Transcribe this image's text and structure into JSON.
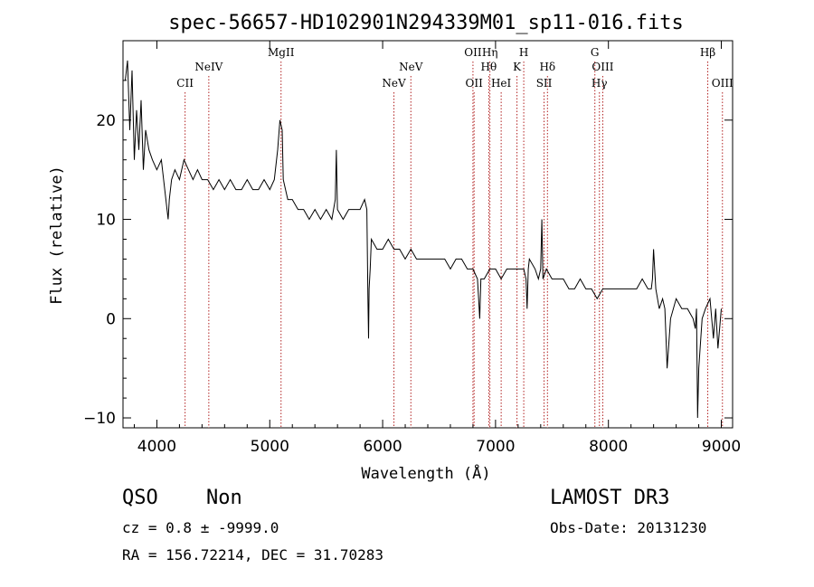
{
  "chart_data": {
    "type": "line",
    "title": "spec-56657-HD102901N294339M01_sp11-016.fits",
    "xlabel": "Wavelength (Å)",
    "ylabel": "Flux (relative)",
    "xlim": [
      3700,
      9100
    ],
    "ylim": [
      -11,
      28
    ],
    "xticks": [
      4000,
      5000,
      6000,
      7000,
      8000,
      9000
    ],
    "yticks": [
      -10,
      0,
      10,
      20
    ],
    "grid": false,
    "line_color": "#000000",
    "marker_color": "#b22222",
    "series": [
      {
        "x": [
          3720,
          3740,
          3760,
          3780,
          3800,
          3820,
          3840,
          3860,
          3880,
          3900,
          3930,
          3960,
          4000,
          4040,
          4080,
          4100,
          4110,
          4130,
          4160,
          4200,
          4240,
          4280,
          4320,
          4360,
          4400,
          4450,
          4500,
          4550,
          4600,
          4650,
          4700,
          4750,
          4800,
          4850,
          4900,
          4950,
          5000,
          5040,
          5070,
          5090,
          5110,
          5120,
          5140,
          5160,
          5200,
          5250,
          5300,
          5350,
          5400,
          5450,
          5500,
          5550,
          5580,
          5590,
          5600,
          5650,
          5700,
          5750,
          5800,
          5840,
          5860,
          5870,
          5875,
          5880,
          5890,
          5900,
          5950,
          6000,
          6050,
          6100,
          6150,
          6200,
          6250,
          6300,
          6350,
          6400,
          6450,
          6500,
          6550,
          6600,
          6650,
          6700,
          6750,
          6800,
          6840,
          6850,
          6860,
          6870,
          6900,
          6950,
          7000,
          7050,
          7100,
          7150,
          7200,
          7250,
          7270,
          7280,
          7290,
          7300,
          7350,
          7380,
          7400,
          7410,
          7420,
          7450,
          7500,
          7550,
          7600,
          7650,
          7700,
          7750,
          7800,
          7850,
          7900,
          7950,
          8000,
          8050,
          8100,
          8150,
          8200,
          8250,
          8300,
          8350,
          8380,
          8390,
          8400,
          8420,
          8450,
          8480,
          8500,
          8510,
          8520,
          8550,
          8600,
          8650,
          8700,
          8750,
          8770,
          8780,
          8790,
          8800,
          8830,
          8860,
          8900,
          8930,
          8950,
          8970,
          9000
        ],
        "values": [
          24,
          26,
          19,
          25,
          16,
          21,
          17,
          22,
          15,
          19,
          17,
          16,
          15,
          16,
          12,
          10,
          12,
          14,
          15,
          14,
          16,
          15,
          14,
          15,
          14,
          14,
          13,
          14,
          13,
          14,
          13,
          13,
          14,
          13,
          13,
          14,
          13,
          14,
          17,
          20,
          19,
          14,
          13,
          12,
          12,
          11,
          11,
          10,
          11,
          10,
          11,
          10,
          12,
          17,
          11,
          10,
          11,
          11,
          11,
          12,
          11,
          2,
          -2,
          3,
          5,
          8,
          7,
          7,
          8,
          7,
          7,
          6,
          7,
          6,
          6,
          6,
          6,
          6,
          6,
          5,
          6,
          6,
          5,
          5,
          4,
          2,
          0,
          4,
          4,
          5,
          5,
          4,
          5,
          5,
          5,
          5,
          4,
          1,
          5,
          6,
          5,
          4,
          5,
          10,
          4,
          5,
          4,
          4,
          4,
          3,
          3,
          4,
          3,
          3,
          2,
          3,
          3,
          3,
          3,
          3,
          3,
          3,
          4,
          3,
          3,
          4,
          7,
          3,
          1,
          2,
          1,
          -2,
          -5,
          0,
          2,
          1,
          1,
          0,
          -1,
          1,
          -10,
          -5,
          0,
          1,
          2,
          -2,
          1,
          -3,
          1
        ]
      }
    ],
    "lines_top": [
      {
        "label": "MgII",
        "x": 5100
      },
      {
        "label": "OII",
        "x": 6800
      },
      {
        "label": "Hη",
        "x": 6950
      },
      {
        "label": "H",
        "x": 7250
      },
      {
        "label": "G",
        "x": 7880
      },
      {
        "label": "Hβ",
        "x": 8880
      }
    ],
    "lines_mid": [
      {
        "label": "NeIV",
        "x": 4460
      },
      {
        "label": "NeV",
        "x": 6250
      },
      {
        "label": "Hθ",
        "x": 6940
      },
      {
        "label": "K",
        "x": 7190
      },
      {
        "label": "Hδ",
        "x": 7460
      },
      {
        "label": "OIII",
        "x": 7950
      }
    ],
    "lines_low": [
      {
        "label": "CII",
        "x": 4250
      },
      {
        "label": "NeV",
        "x": 6100
      },
      {
        "label": "OII",
        "x": 6810
      },
      {
        "label": "HeI",
        "x": 7050
      },
      {
        "label": "SII",
        "x": 7430
      },
      {
        "label": "Hγ",
        "x": 7920
      },
      {
        "label": "OIII",
        "x": 9010
      }
    ]
  },
  "info": {
    "class": "QSO",
    "subclass": "Non",
    "survey": "LAMOST DR3",
    "cz": "cz = 0.8 ± -9999.0",
    "obs_date": "Obs-Date: 20131230",
    "radec": "RA = 156.72214, DEC =  31.70283"
  }
}
